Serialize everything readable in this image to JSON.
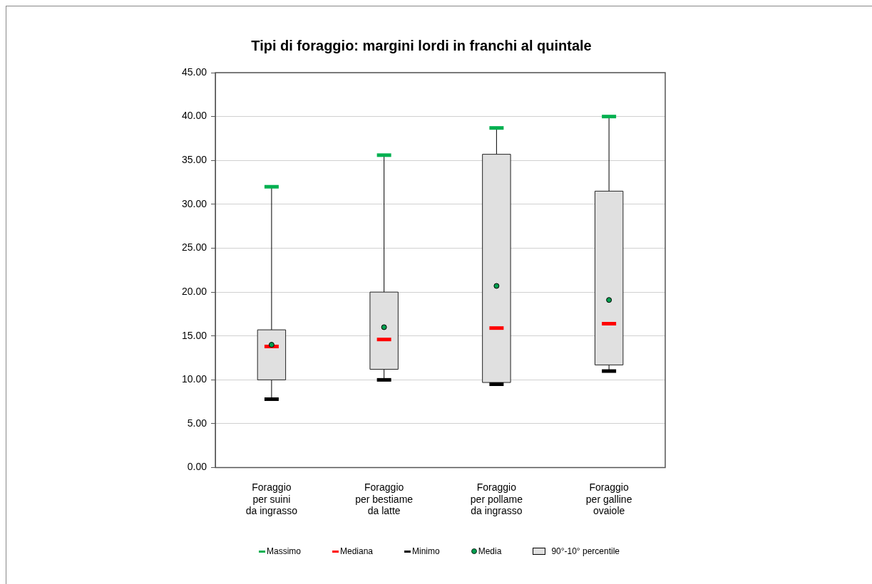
{
  "chart_data": {
    "type": "box",
    "title": "Tipi di foraggio: margini lordi in franchi al quintale",
    "categories": [
      "Foraggio\nper suini\nda ingrasso",
      "Foraggio\nper bestiame\nda latte",
      "Foraggio\nper pollame\nda ingrasso",
      "Foraggio\nper galline\novaiole"
    ],
    "series": [
      {
        "name": "90°-10° percentile",
        "color": "#e0e0e0",
        "boxes": [
          {
            "low": 7.8,
            "q1": 10.0,
            "median": 13.8,
            "q3": 15.7,
            "high": 32.0,
            "mean": 14.0
          },
          {
            "low": 10.0,
            "q1": 11.2,
            "median": 14.6,
            "q3": 20.0,
            "high": 35.6,
            "mean": 16.0
          },
          {
            "low": 9.5,
            "q1": 9.7,
            "median": 15.9,
            "q3": 35.7,
            "high": 38.7,
            "mean": 20.7
          },
          {
            "low": 11.0,
            "q1": 11.7,
            "median": 16.4,
            "q3": 31.5,
            "high": 40.0,
            "mean": 19.1
          }
        ]
      }
    ],
    "annotations": [
      "Massimo",
      "Mediana",
      "Minimo",
      "Media"
    ],
    "ylim": [
      0,
      45
    ],
    "yticks": [
      {
        "value": 0,
        "label": "0.00"
      },
      {
        "value": 5,
        "label": "5.00"
      },
      {
        "value": 10,
        "label": "10.00"
      },
      {
        "value": 15,
        "label": "15.00"
      },
      {
        "value": 20,
        "label": "20.00"
      },
      {
        "value": 25,
        "label": "25.00"
      },
      {
        "value": 30,
        "label": "30.00"
      },
      {
        "value": 35,
        "label": "35.00"
      },
      {
        "value": 40,
        "label": "40.00"
      },
      {
        "value": 45,
        "label": "45.00"
      }
    ],
    "grid": "y",
    "legend": "bottom"
  }
}
